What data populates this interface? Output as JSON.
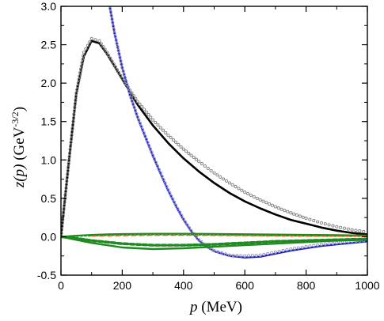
{
  "chart_data": {
    "type": "line",
    "x_label": {
      "var": "p",
      "rest": " (MeV)"
    },
    "y_label": {
      "var": "z(p)",
      "rest": " (GeV",
      "sup": "-3/2",
      "end": ")"
    },
    "xlim": [
      0,
      1000
    ],
    "ylim": [
      -0.5,
      3.0
    ],
    "x_ticks": [
      0,
      200,
      400,
      600,
      800,
      1000
    ],
    "x_tick_labels": [
      "0",
      "200",
      "400",
      "600",
      "800",
      "1000"
    ],
    "y_ticks": [
      -0.5,
      0.0,
      0.5,
      1.0,
      1.5,
      2.0,
      2.5,
      3.0
    ],
    "y_tick_labels": [
      "-0.5",
      "0.0",
      "0.5",
      "1.0",
      "1.5",
      "2.0",
      "2.5",
      "3.0"
    ],
    "grid": false,
    "legend": "none",
    "series": [
      {
        "color": "#000000",
        "style": "solid",
        "width": 2.6,
        "x": [
          0,
          25,
          50,
          75,
          100,
          125,
          150,
          200,
          250,
          300,
          350,
          400,
          450,
          500,
          550,
          600,
          650,
          700,
          750,
          800,
          850,
          900,
          950,
          1000
        ],
        "y": [
          0.0,
          0.95,
          1.85,
          2.35,
          2.55,
          2.52,
          2.38,
          2.05,
          1.72,
          1.45,
          1.22,
          1.02,
          0.85,
          0.7,
          0.57,
          0.46,
          0.37,
          0.29,
          0.22,
          0.17,
          0.12,
          0.08,
          0.05,
          0.03
        ]
      },
      {
        "color": "#808080",
        "style": "dotted-circles",
        "width": 1,
        "x": [
          0,
          25,
          50,
          75,
          100,
          125,
          150,
          200,
          250,
          300,
          350,
          400,
          450,
          500,
          550,
          600,
          650,
          700,
          750,
          800,
          850,
          900,
          950,
          1000
        ],
        "y": [
          0.0,
          0.95,
          1.87,
          2.4,
          2.58,
          2.55,
          2.4,
          2.06,
          1.76,
          1.52,
          1.32,
          1.14,
          0.98,
          0.83,
          0.7,
          0.58,
          0.48,
          0.39,
          0.31,
          0.24,
          0.18,
          0.13,
          0.09,
          0.06
        ]
      },
      {
        "color": "#1a1acc",
        "style": "solid",
        "width": 2.4,
        "x": [
          150,
          175,
          200,
          225,
          250,
          275,
          300,
          325,
          350,
          375,
          400,
          425,
          450,
          475,
          500,
          550,
          600,
          650,
          700,
          750,
          800,
          850,
          900,
          950,
          1000
        ],
        "y": [
          3.2,
          2.65,
          2.2,
          1.85,
          1.55,
          1.3,
          1.05,
          0.82,
          0.6,
          0.4,
          0.22,
          0.07,
          -0.05,
          -0.13,
          -0.19,
          -0.25,
          -0.27,
          -0.26,
          -0.22,
          -0.18,
          -0.15,
          -0.12,
          -0.1,
          -0.08,
          -0.06
        ]
      },
      {
        "color": "#9999bb",
        "style": "dotted-circles",
        "width": 1,
        "x": [
          150,
          175,
          200,
          225,
          250,
          275,
          300,
          325,
          350,
          375,
          400,
          425,
          450,
          475,
          500,
          550,
          600,
          650,
          700,
          750,
          800,
          850,
          900,
          950,
          1000
        ],
        "y": [
          3.2,
          2.65,
          2.2,
          1.85,
          1.56,
          1.31,
          1.06,
          0.83,
          0.61,
          0.41,
          0.23,
          0.08,
          -0.04,
          -0.12,
          -0.18,
          -0.24,
          -0.25,
          -0.24,
          -0.2,
          -0.16,
          -0.13,
          -0.1,
          -0.08,
          -0.06,
          -0.05
        ]
      },
      {
        "color": "#1f8a1f",
        "style": "solid",
        "width": 2.4,
        "x": [
          0,
          50,
          100,
          150,
          200,
          300,
          400,
          500,
          600,
          700,
          800,
          900,
          1000
        ],
        "y": [
          0.0,
          -0.04,
          -0.08,
          -0.11,
          -0.14,
          -0.16,
          -0.15,
          -0.13,
          -0.11,
          -0.09,
          -0.07,
          -0.05,
          -0.04
        ]
      },
      {
        "color": "#1f8a1f",
        "style": "dashed-thick",
        "width": 3.5,
        "x": [
          0,
          50,
          100,
          150,
          200,
          300,
          400,
          500,
          600,
          700,
          800,
          900,
          1000
        ],
        "y": [
          0.0,
          -0.02,
          -0.05,
          -0.07,
          -0.09,
          -0.11,
          -0.11,
          -0.1,
          -0.08,
          -0.06,
          -0.05,
          -0.04,
          -0.03
        ]
      },
      {
        "color": "#1f8a1f",
        "style": "dotted",
        "width": 2,
        "x": [
          0,
          50,
          100,
          150,
          200,
          300,
          400,
          500,
          600,
          700,
          800,
          900,
          1000
        ],
        "y": [
          0.0,
          0.01,
          0.015,
          0.02,
          0.025,
          0.03,
          0.03,
          0.025,
          0.02,
          0.015,
          0.012,
          0.01,
          0.008
        ]
      },
      {
        "color": "#1f8a1f",
        "style": "solid",
        "width": 2,
        "x": [
          0,
          50,
          100,
          150,
          200,
          300,
          400,
          500,
          600,
          700,
          800,
          900,
          1000
        ],
        "y": [
          0.0,
          0.015,
          0.025,
          0.032,
          0.036,
          0.04,
          0.04,
          0.038,
          0.034,
          0.03,
          0.026,
          0.022,
          0.018
        ]
      },
      {
        "color": "#e06010",
        "style": "dashed",
        "width": 1.5,
        "x": [
          100,
          200,
          300,
          400,
          500,
          600,
          700,
          800,
          900,
          1000
        ],
        "y": [
          0.01,
          0.015,
          0.02,
          0.02,
          0.018,
          0.015,
          0.012,
          0.01,
          0.008,
          0.006
        ]
      }
    ]
  }
}
